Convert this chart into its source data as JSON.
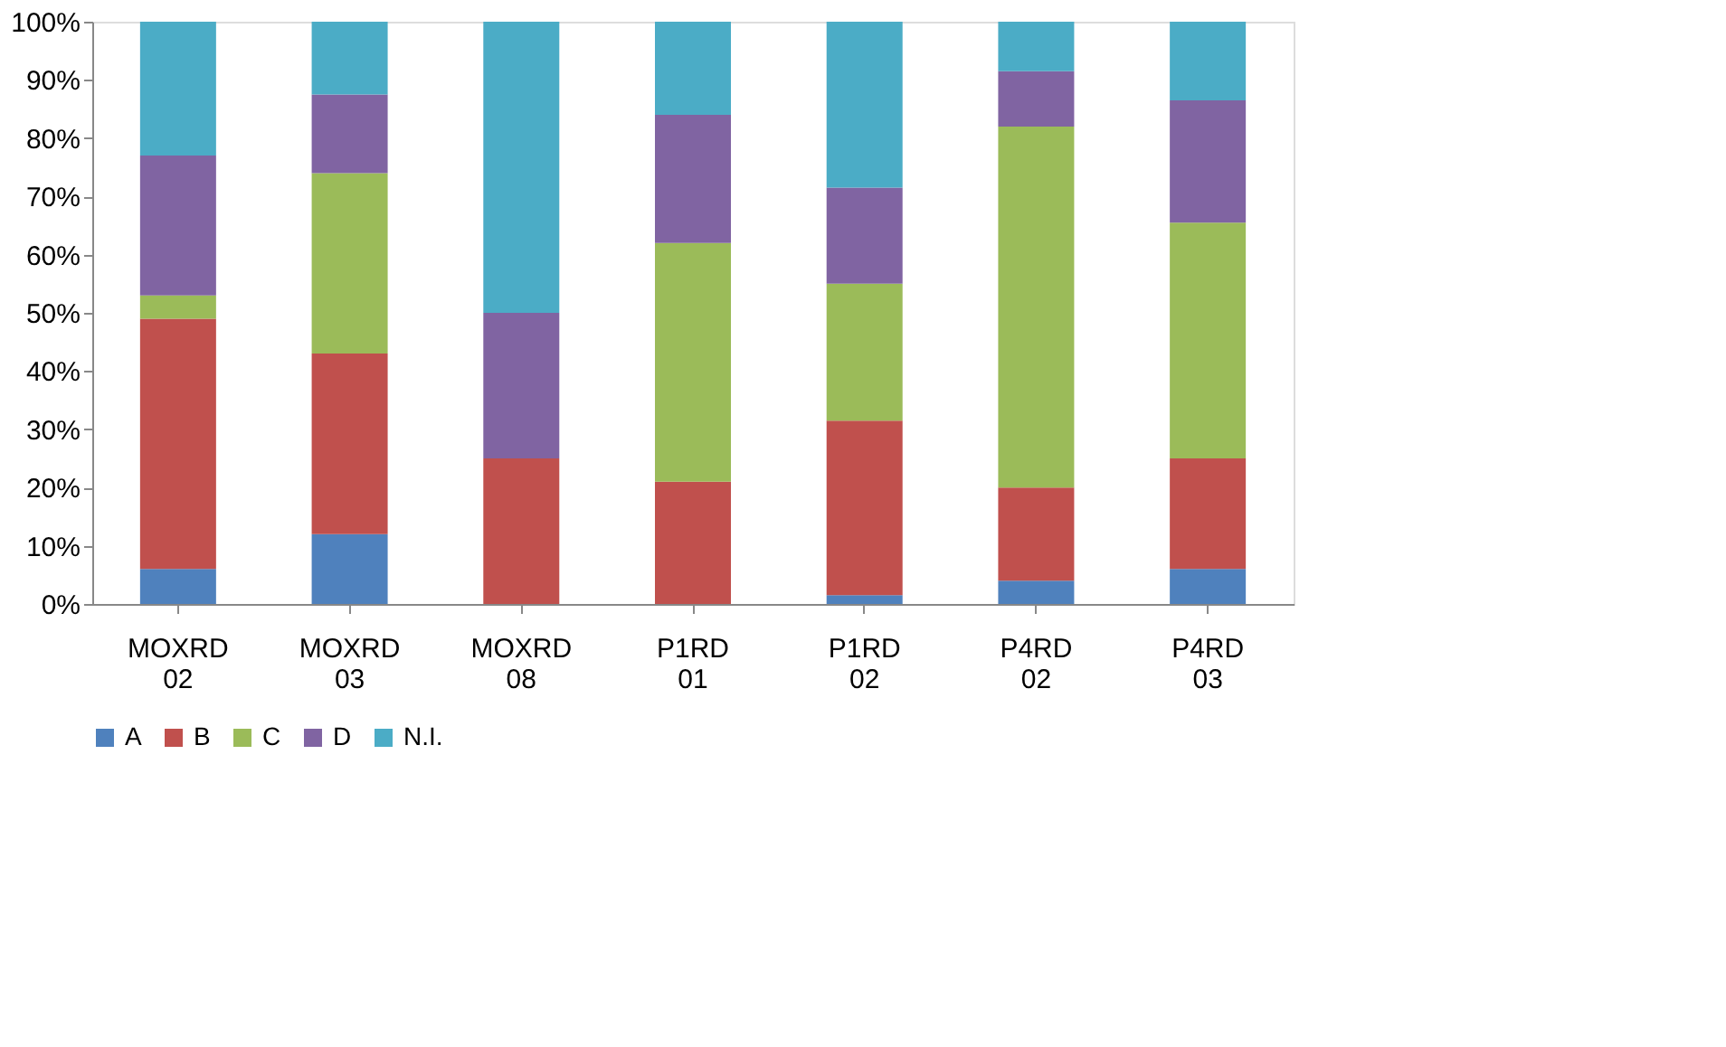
{
  "chart_data": {
    "type": "bar",
    "stacked": true,
    "categories": [
      "MOXRD 02",
      "MOXRD 03",
      "MOXRD 08",
      "P1RD 01",
      "P1RD 02",
      "P4RD 02",
      "P4RD 03"
    ],
    "series": [
      {
        "name": "A",
        "color": "#4f81bd",
        "values": [
          6,
          12,
          0,
          0,
          1.5,
          4,
          6
        ]
      },
      {
        "name": "B",
        "color": "#c0504d",
        "values": [
          43,
          31,
          25,
          21,
          30,
          16,
          19
        ]
      },
      {
        "name": "C",
        "color": "#9bbb59",
        "values": [
          4,
          31,
          0,
          41,
          23.5,
          62,
          40.5
        ]
      },
      {
        "name": "D",
        "color": "#8064a2",
        "values": [
          24,
          13.5,
          25,
          22,
          16.5,
          9.5,
          21
        ]
      },
      {
        "name": "N.I.",
        "color": "#4bacc6",
        "values": [
          23,
          12.5,
          50,
          16,
          28.5,
          8.5,
          13.5
        ]
      }
    ],
    "ylim": [
      0,
      100
    ],
    "yticks": [
      {
        "value": 0,
        "label": "0%"
      },
      {
        "value": 10,
        "label": "10%"
      },
      {
        "value": 20,
        "label": "20%"
      },
      {
        "value": 30,
        "label": "30%"
      },
      {
        "value": 40,
        "label": "40%"
      },
      {
        "value": 50,
        "label": "50%"
      },
      {
        "value": 60,
        "label": "60%"
      },
      {
        "value": 70,
        "label": "70%"
      },
      {
        "value": 80,
        "label": "80%"
      },
      {
        "value": 90,
        "label": "90%"
      },
      {
        "value": 100,
        "label": "100%"
      }
    ],
    "grid": false,
    "legend": "bottom"
  }
}
